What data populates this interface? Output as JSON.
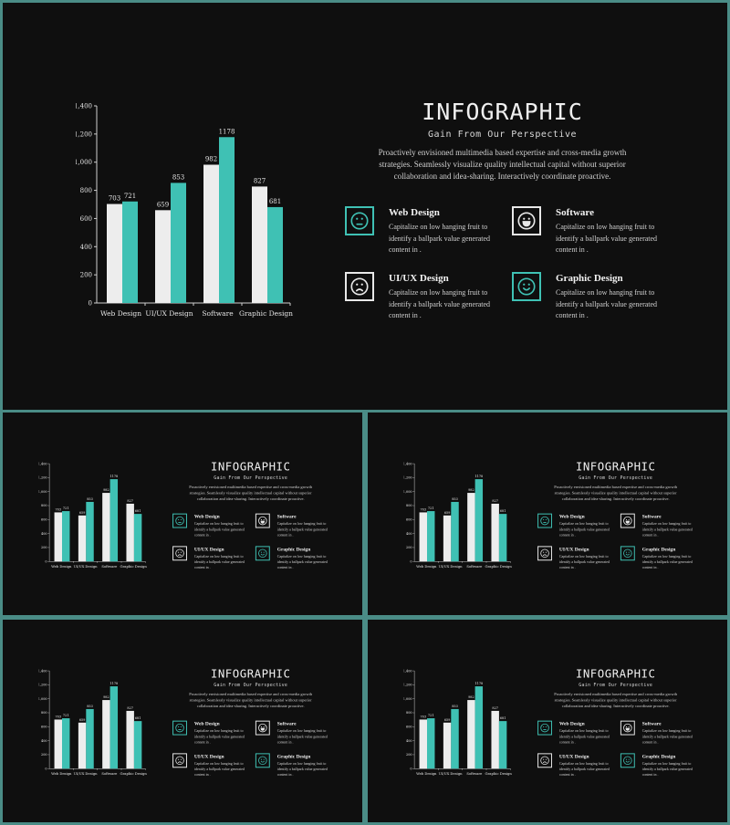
{
  "slide": {
    "title": "INFOGRAPHIC",
    "subtitle": "Gain From Our Perspective",
    "description": "Proactively envisioned multimedia based expertise and cross-media growth strategies. Seamlessly visualize quality intellectual capital without superior collaboration and idea-sharing. Interactively coordinate proactive.",
    "features": [
      {
        "title": "Web Design",
        "text": "Capitalize on low hanging fruit to identify a ballpark value generated content in .",
        "icon": "neutral-face-icon",
        "accent": "#3fc1b4"
      },
      {
        "title": "Software",
        "text": "Capitalize on low hanging fruit to identify a ballpark value generated content in .",
        "icon": "grinning-face-icon",
        "accent": "#e8e8e8"
      },
      {
        "title": "UI/UX Design",
        "text": "Capitalize on low hanging fruit to identify a ballpark value generated content in .",
        "icon": "frowning-face-icon",
        "accent": "#e8e8e8"
      },
      {
        "title": "Graphic Design",
        "text": "Capitalize on low hanging fruit to identify a ballpark value generated content in .",
        "icon": "smiling-face-icon",
        "accent": "#3fc1b4"
      }
    ]
  },
  "colors": {
    "background": "#0f0f0f",
    "teal": "#3fc1b4",
    "white_bar": "#ededed",
    "frame": "#4a8c86"
  },
  "chart_data": {
    "type": "bar",
    "categories": [
      "Web Design",
      "UI/UX Design",
      "Software",
      "Graphic Design"
    ],
    "series": [
      {
        "values": [
          703,
          659,
          982,
          827
        ],
        "color": "#ededed"
      },
      {
        "values": [
          721,
          853,
          1178,
          681
        ],
        "color": "#3fc1b4"
      }
    ],
    "yticks": [
      "0",
      "200",
      "400",
      "600",
      "800",
      "1,000",
      "1,200",
      "1,400"
    ],
    "ylim": [
      0,
      1400
    ],
    "grid": false
  }
}
